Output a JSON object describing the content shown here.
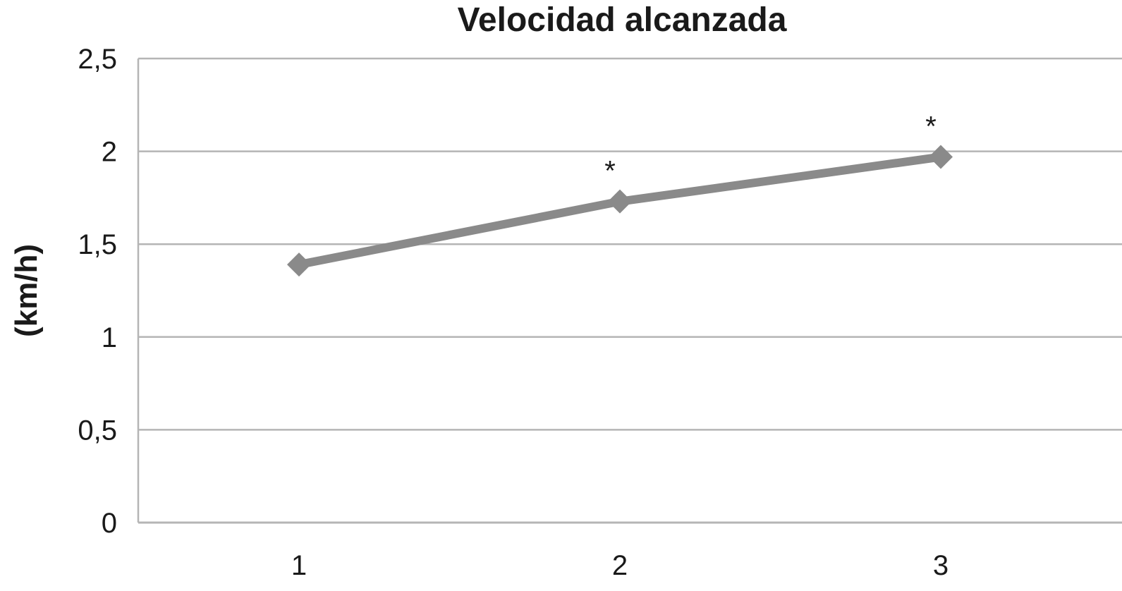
{
  "chart_data": {
    "type": "line",
    "title": "Velocidad alcanzada",
    "xlabel": "",
    "ylabel": "(km/h)",
    "categories": [
      "1",
      "2",
      "3"
    ],
    "series": [
      {
        "values": [
          1.39,
          1.73,
          1.97
        ]
      }
    ],
    "annotations": [
      "",
      "*",
      "*"
    ],
    "ylim": [
      0,
      2.5
    ],
    "yticks": [
      0,
      0.5,
      1,
      1.5,
      2,
      2.5
    ],
    "ytick_labels": [
      "0",
      "0,5",
      "1",
      "1,5",
      "2",
      "2,5"
    ],
    "grid": true,
    "legend": "none",
    "colors": {
      "line": "#8a8a8a",
      "grid": "#b5b5b5",
      "text": "#1a1a1a"
    }
  }
}
